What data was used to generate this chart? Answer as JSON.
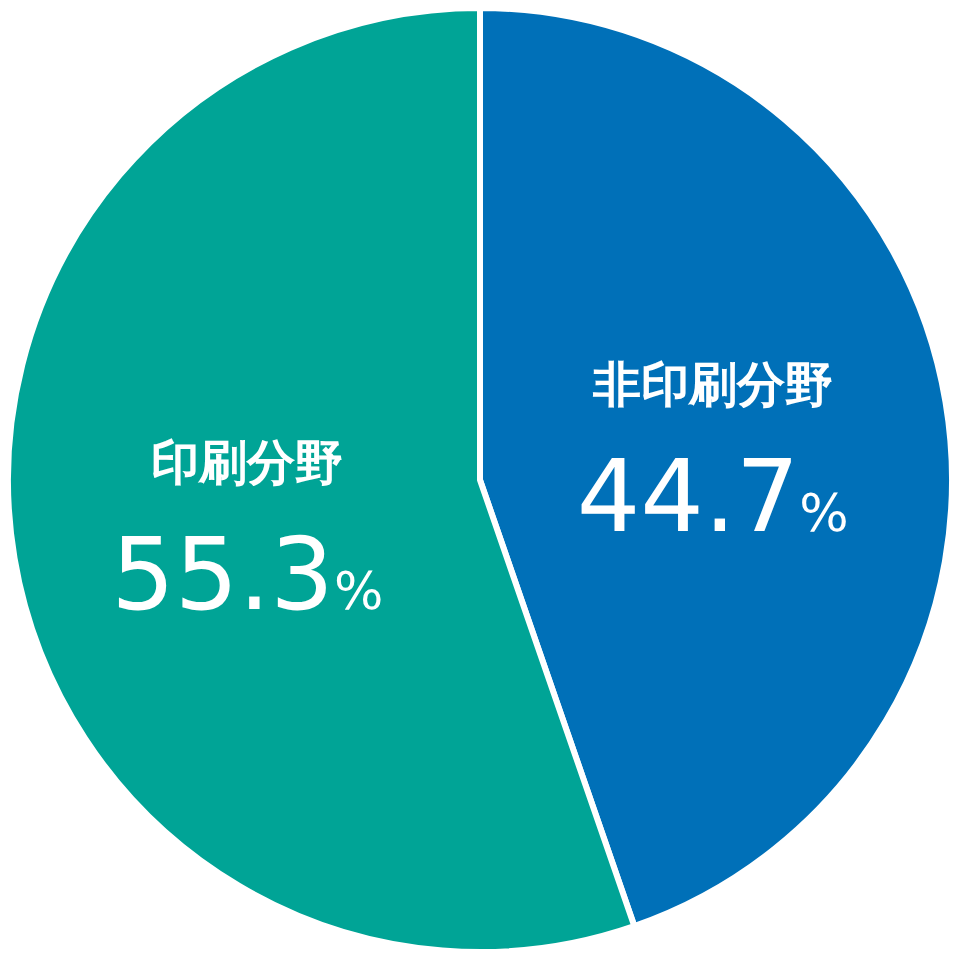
{
  "chart_data": {
    "type": "pie",
    "categories": [
      "非印刷分野",
      "印刷分野"
    ],
    "values": [
      44.7,
      55.3
    ],
    "colors": [
      "#0070b8",
      "#00a496"
    ],
    "value_labels": [
      "44.7%",
      "55.3%"
    ],
    "legend": false
  }
}
